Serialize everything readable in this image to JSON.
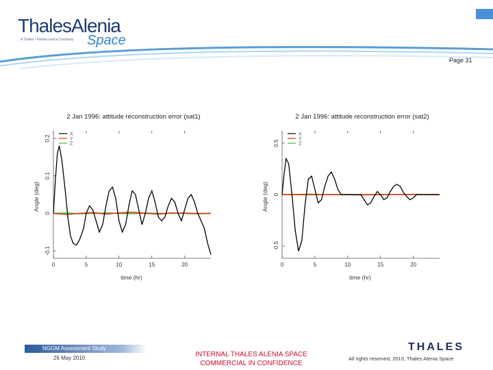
{
  "header": {
    "logo_main": "ThalesAlenia",
    "logo_sub": "A Thales / Finmeccanica Company",
    "logo_space": "Space",
    "page_label": "Page 31"
  },
  "colors": {
    "x": "#000000",
    "y": "#e03010",
    "z": "#3cbf3c",
    "brand": "#1e3b73",
    "confidential": "#c8102e"
  },
  "chart_data": [
    {
      "type": "line",
      "title": "2 Jan 1996: attitude reconstruction error (sat1)",
      "xlabel": "time (hr)",
      "ylabel": "Angle (deg)",
      "xlim": [
        0,
        24
      ],
      "ylim": [
        -0.12,
        0.22
      ],
      "xticks": [
        0,
        5,
        10,
        15,
        20
      ],
      "yticks": [
        -0.1,
        0,
        0.1,
        0.2
      ],
      "ytick_labels": [
        "-0.1",
        "0",
        "0.1",
        "0.2"
      ],
      "legend_position": "top-left",
      "series": [
        {
          "name": "X",
          "color": "#000000",
          "x": [
            0,
            0.3,
            0.6,
            0.9,
            1.3,
            1.8,
            2.2,
            2.6,
            3.0,
            3.5,
            4.0,
            4.6,
            5.0,
            5.5,
            6.0,
            6.5,
            7.0,
            7.5,
            8.0,
            8.5,
            9.0,
            9.5,
            10.0,
            10.5,
            11.0,
            11.5,
            12.0,
            12.5,
            13.0,
            13.5,
            14.0,
            14.5,
            15.0,
            15.5,
            16.0,
            16.5,
            17.0,
            17.5,
            18.0,
            18.5,
            19.0,
            19.5,
            20.0,
            20.5,
            21.0,
            21.5,
            22.0,
            22.5,
            23.0,
            23.5,
            24.0
          ],
          "y": [
            0.0,
            0.09,
            0.16,
            0.18,
            0.14,
            0.06,
            -0.01,
            -0.06,
            -0.08,
            -0.085,
            -0.07,
            -0.04,
            0.0,
            0.02,
            0.01,
            -0.02,
            -0.05,
            -0.03,
            0.02,
            0.06,
            0.07,
            0.04,
            -0.02,
            -0.05,
            -0.03,
            0.02,
            0.06,
            0.05,
            0.01,
            -0.03,
            0.0,
            0.04,
            0.06,
            0.03,
            -0.01,
            -0.02,
            -0.01,
            0.02,
            0.04,
            0.03,
            0.0,
            -0.02,
            0.01,
            0.04,
            0.05,
            0.03,
            0.0,
            -0.02,
            -0.04,
            -0.08,
            -0.11
          ]
        },
        {
          "name": "Y",
          "color": "#e03010",
          "x": [
            0,
            2,
            4,
            6,
            8,
            10,
            12,
            14,
            16,
            18,
            20,
            22,
            24
          ],
          "y": [
            0.0,
            -0.003,
            0.0,
            0.002,
            -0.002,
            0.001,
            0.003,
            0.0,
            -0.002,
            0.001,
            0.0,
            -0.001,
            0.0
          ]
        },
        {
          "name": "Z",
          "color": "#3cbf3c",
          "x": [
            0,
            2,
            4,
            6,
            8,
            10,
            12,
            14,
            16,
            18,
            20,
            22,
            24
          ],
          "y": [
            0.0,
            0.001,
            -0.001,
            0.0,
            0.001,
            0.0,
            -0.001,
            0.001,
            0.0,
            0.0,
            0.001,
            0.0,
            0.0
          ]
        }
      ]
    },
    {
      "type": "line",
      "title": "2 Jan 1996: attitude reconstruction error (sat2)",
      "xlabel": "time (hr)",
      "ylabel": "Angle (deg)",
      "xlim": [
        0,
        24
      ],
      "ylim": [
        -0.62,
        0.62
      ],
      "xticks": [
        0,
        5,
        10,
        15,
        20
      ],
      "yticks": [
        -0.5,
        0,
        0.5
      ],
      "ytick_labels": [
        "-0.5",
        "0",
        "0.5"
      ],
      "legend_position": "top-left",
      "series": [
        {
          "name": "X",
          "color": "#000000",
          "x": [
            0,
            0.3,
            0.6,
            1.0,
            1.5,
            2.0,
            2.5,
            3.0,
            3.5,
            4.0,
            4.5,
            5.0,
            5.5,
            6.0,
            6.5,
            7.0,
            7.5,
            8.0,
            8.5,
            9.0,
            10.0,
            11.0,
            12.0,
            12.5,
            13.0,
            13.5,
            14.0,
            14.5,
            15.0,
            15.5,
            16.0,
            16.5,
            17.0,
            17.5,
            18.0,
            18.5,
            19.0,
            19.5,
            20.0,
            20.5,
            21.0,
            22.0,
            23.0,
            24.0
          ],
          "y": [
            0.0,
            0.2,
            0.35,
            0.3,
            0.0,
            -0.35,
            -0.55,
            -0.45,
            -0.1,
            0.15,
            0.18,
            0.05,
            -0.08,
            -0.05,
            0.08,
            0.18,
            0.22,
            0.15,
            0.05,
            0.0,
            0.0,
            0.0,
            0.0,
            -0.05,
            -0.1,
            -0.08,
            -0.02,
            0.03,
            0.0,
            -0.05,
            -0.03,
            0.03,
            0.08,
            0.1,
            0.08,
            0.02,
            -0.02,
            -0.05,
            -0.03,
            0.0,
            0.0,
            0.0,
            0.0,
            0.0
          ]
        },
        {
          "name": "Y",
          "color": "#e03010",
          "x": [
            0,
            4,
            8,
            12,
            16,
            20,
            24
          ],
          "y": [
            0.0,
            0.003,
            0.0,
            -0.003,
            0.0,
            0.002,
            0.0
          ]
        },
        {
          "name": "Z",
          "color": "#3cbf3c",
          "x": [
            0,
            4,
            8,
            12,
            16,
            20,
            24
          ],
          "y": [
            0.0,
            -0.002,
            0.001,
            0.0,
            0.002,
            0.0,
            0.0
          ]
        }
      ]
    }
  ],
  "footer": {
    "study": "NGGM Assessment Study",
    "date": "26 May 2010",
    "internal_line1": "INTERNAL THALES ALENIA SPACE",
    "internal_line2": "COMMERCIAL IN CONFIDENCE",
    "rights": "All rights reserved, 2010, Thales Alenia Space",
    "thales_logo": "THALES"
  }
}
